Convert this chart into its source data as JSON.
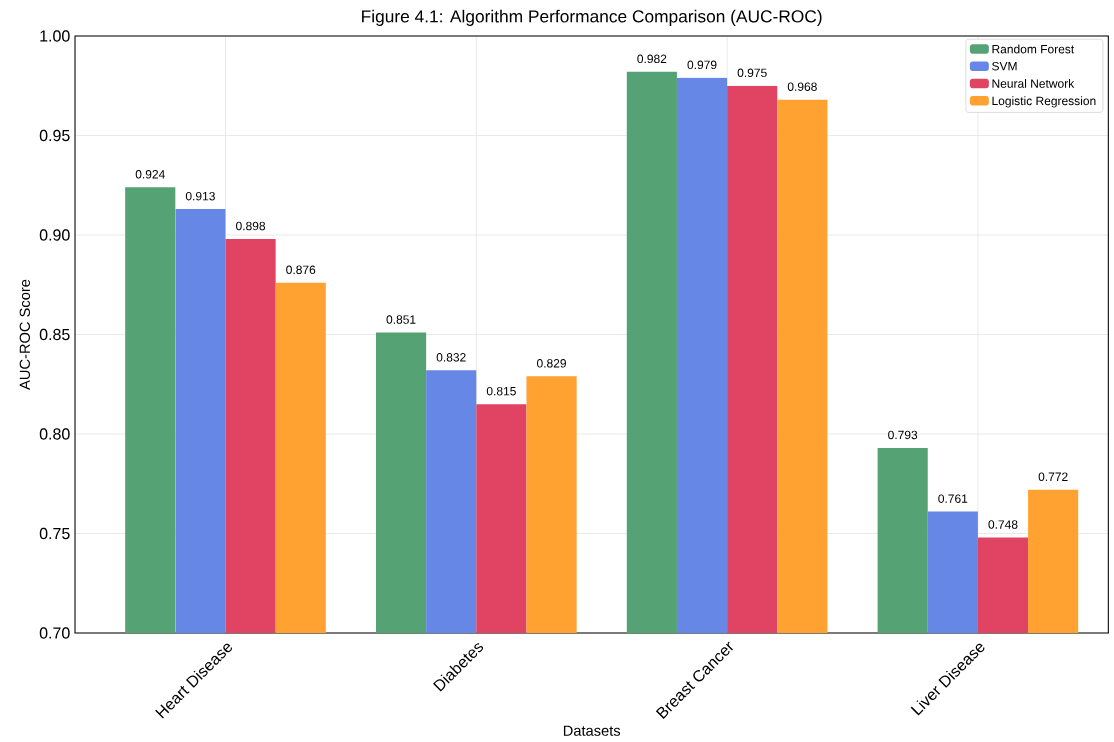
{
  "chart_data": {
    "type": "bar",
    "title": "Figure 4.1: Algorithm Performance Comparison (AUC-ROC)",
    "xlabel": "Datasets",
    "ylabel": "AUC-ROC Score",
    "categories": [
      "Heart Disease",
      "Diabetes",
      "Breast Cancer",
      "Liver Disease"
    ],
    "series": [
      {
        "name": "Random Forest",
        "color": "#55a275",
        "values": [
          0.924,
          0.851,
          0.982,
          0.793
        ]
      },
      {
        "name": "SVM",
        "color": "#6687e5",
        "values": [
          0.913,
          0.832,
          0.979,
          0.761
        ]
      },
      {
        "name": "Neural Network",
        "color": "#e04462",
        "values": [
          0.898,
          0.815,
          0.975,
          0.748
        ]
      },
      {
        "name": "Logistic Regression",
        "color": "#ffa232",
        "values": [
          0.876,
          0.829,
          0.968,
          0.772
        ]
      }
    ],
    "ylim": [
      0.7,
      1.0
    ],
    "yticks": [
      {
        "value": 0.7,
        "label": "0.70"
      },
      {
        "value": 0.75,
        "label": "0.75"
      },
      {
        "value": 0.8,
        "label": "0.80"
      },
      {
        "value": 0.85,
        "label": "0.85"
      },
      {
        "value": 0.9,
        "label": "0.90"
      },
      {
        "value": 0.95,
        "label": "0.95"
      },
      {
        "value": 1.0,
        "label": "1.00"
      }
    ],
    "grid": true,
    "legend": "top right",
    "data_labels": true
  }
}
